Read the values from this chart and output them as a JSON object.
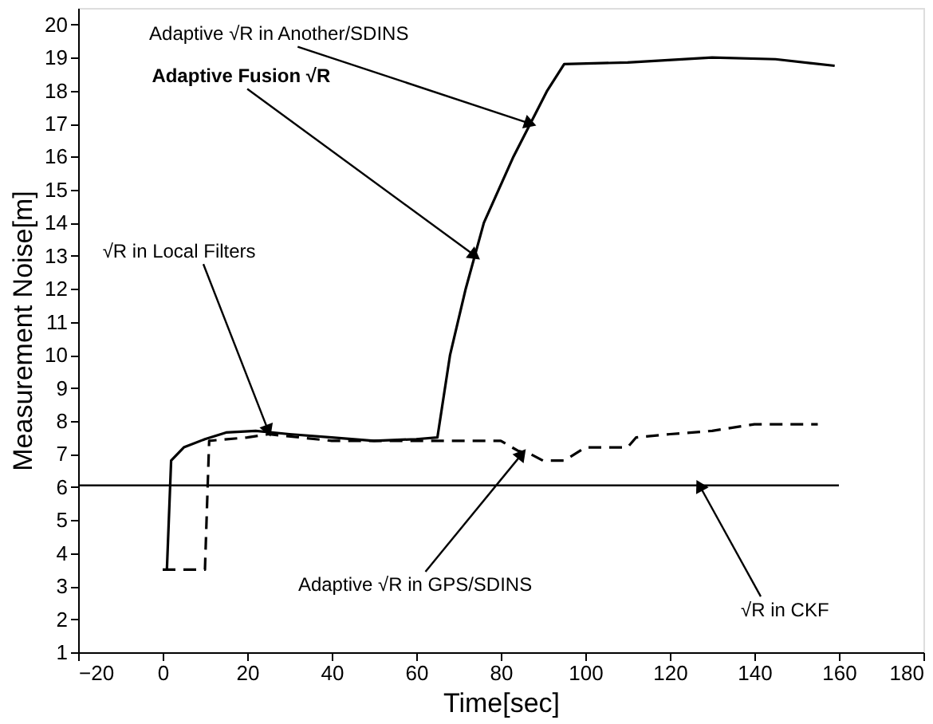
{
  "chart_data": {
    "type": "line",
    "xlabel": "Time[sec]",
    "ylabel": "Measurement Noise[m]",
    "xlim": [
      -20,
      180
    ],
    "ylim": [
      1,
      20.5
    ],
    "xticks": [
      -20,
      0,
      20,
      40,
      60,
      80,
      100,
      120,
      140,
      160,
      180
    ],
    "yticks": [
      1,
      2,
      3,
      4,
      5,
      6,
      7,
      8,
      9,
      10,
      11,
      12,
      13,
      14,
      15,
      16,
      17,
      18,
      19,
      20
    ],
    "grid": false,
    "marker": "none",
    "series": [
      {
        "color": "#000000",
        "line_style": "solid",
        "x": [
          1,
          2,
          5,
          10,
          15,
          22,
          30,
          40,
          50,
          60,
          65,
          68,
          71.7,
          76,
          83,
          87,
          91,
          95,
          110,
          130,
          145,
          159
        ],
        "values": [
          3.5,
          6.8,
          7.2,
          7.45,
          7.65,
          7.7,
          7.6,
          7.5,
          7.4,
          7.45,
          7.5,
          10,
          12,
          14,
          16,
          17,
          18,
          18.8,
          18.85,
          19.0,
          18.95,
          18.75
        ]
      },
      {
        "color": "#000000",
        "line_style": "dashed",
        "x": [
          0,
          10,
          11,
          20,
          25,
          40,
          60,
          80,
          84,
          87,
          90,
          95,
          100,
          110,
          112,
          120,
          130,
          140,
          155
        ],
        "values": [
          3.5,
          3.5,
          7.4,
          7.5,
          7.6,
          7.4,
          7.4,
          7.4,
          7.1,
          7.0,
          6.8,
          6.8,
          7.2,
          7.2,
          7.5,
          7.6,
          7.7,
          7.9,
          7.9
        ]
      },
      {
        "color": "#000000",
        "line_style": "solid",
        "x": [
          -20,
          160
        ],
        "values": [
          6.05,
          6.05
        ]
      }
    ],
    "annotations": [
      {
        "text": "Adaptive √R in Another/SDINS",
        "x": 87,
        "y": 17
      },
      {
        "text": "Adaptive Fusion √R",
        "x": 73.9,
        "y": 13
      },
      {
        "text": "√R in Local Filters",
        "x": 25,
        "y": 7.7
      },
      {
        "text": "Adaptive √R in GPS/SDINS",
        "x": 85,
        "y": 7.0
      },
      {
        "text": "√R in CKF",
        "x": 127,
        "y": 6.05
      }
    ]
  }
}
